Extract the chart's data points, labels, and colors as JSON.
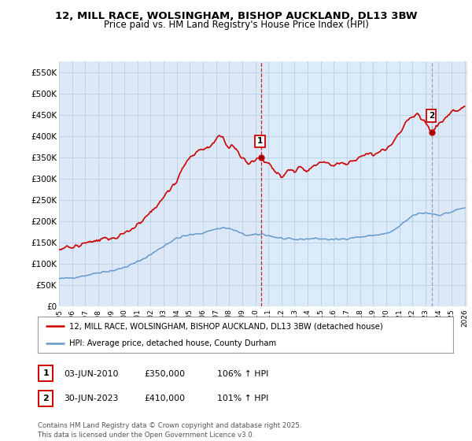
{
  "title": "12, MILL RACE, WOLSINGHAM, BISHOP AUCKLAND, DL13 3BW",
  "subtitle": "Price paid vs. HM Land Registry's House Price Index (HPI)",
  "ylim": [
    0,
    575000
  ],
  "yticks": [
    0,
    50000,
    100000,
    150000,
    200000,
    250000,
    300000,
    350000,
    400000,
    450000,
    500000,
    550000
  ],
  "ytick_labels": [
    "£0",
    "£50K",
    "£100K",
    "£150K",
    "£200K",
    "£250K",
    "£300K",
    "£350K",
    "£400K",
    "£450K",
    "£500K",
    "£550K"
  ],
  "xlim_start": 1995.3,
  "xlim_end": 2026.2,
  "xticks": [
    1995,
    1996,
    1997,
    1998,
    1999,
    2000,
    2001,
    2002,
    2003,
    2004,
    2005,
    2006,
    2007,
    2008,
    2009,
    2010,
    2011,
    2012,
    2013,
    2014,
    2015,
    2016,
    2017,
    2018,
    2019,
    2020,
    2021,
    2022,
    2023,
    2024,
    2025,
    2026
  ],
  "red_color": "#cc0000",
  "blue_color": "#6699cc",
  "marker1_x": 2010.42,
  "marker1_y": 350000,
  "marker2_x": 2023.5,
  "marker2_y": 410000,
  "vline1_x": 2010.42,
  "vline2_x": 2023.5,
  "vline2_color": "#aaaacc",
  "shade_color": "#dde8f5",
  "legend_label_red": "12, MILL RACE, WOLSINGHAM, BISHOP AUCKLAND, DL13 3BW (detached house)",
  "legend_label_blue": "HPI: Average price, detached house, County Durham",
  "table_row1": [
    "1",
    "03-JUN-2010",
    "£350,000",
    "106% ↑ HPI"
  ],
  "table_row2": [
    "2",
    "30-JUN-2023",
    "£410,000",
    "101% ↑ HPI"
  ],
  "footer": "Contains HM Land Registry data © Crown copyright and database right 2025.\nThis data is licensed under the Open Government Licence v3.0.",
  "plot_bg": "#dce8f5",
  "fig_bg": "#ffffff",
  "grid_color": "#b8cfe8",
  "title_fontsize": 9.5,
  "subtitle_fontsize": 8.5
}
